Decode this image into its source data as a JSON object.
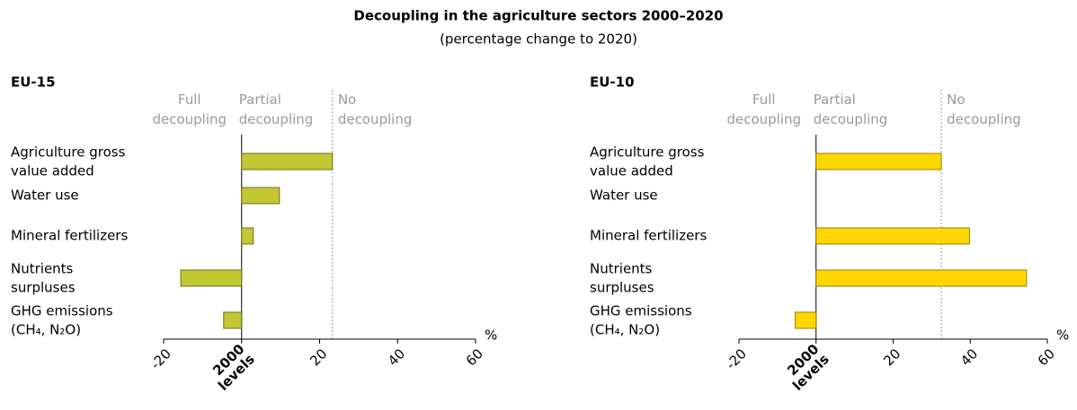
{
  "title": "Decoupling in the agriculture sectors 2000–2020",
  "subtitle": "(percentage change to 2020)",
  "chart_data": [
    {
      "type": "bar",
      "orientation": "horizontal",
      "title": "EU-15",
      "zone_labels": [
        "Full\ndecoupling",
        "Partial\ndecoupling",
        "No\ndecoupling"
      ],
      "categories": [
        "Agriculture gross\nvalue added",
        "Water use",
        "Mineral fertilizers",
        "Nutrients\nsurpluses",
        "GHG emissions\n(CH₄, N₂O)"
      ],
      "values": [
        23.3,
        9.7,
        3,
        -15.6,
        -4.6
      ],
      "color": "#c1c834",
      "border_color": "#6b6f10",
      "xlim": [
        -20,
        60
      ],
      "xticks": [
        -20,
        {
          "value": 0,
          "label": "2000\nlevels"
        },
        20,
        40,
        60
      ],
      "xlabel": "%"
    },
    {
      "type": "bar",
      "orientation": "horizontal",
      "title": "EU-10",
      "zone_labels": [
        "Full\ndecoupling",
        "Partial\ndecoupling",
        "No\ndecoupling"
      ],
      "categories": [
        "Agriculture gross\nvalue added",
        "Water use",
        "Mineral fertilizers",
        "Nutrients\nsurpluses",
        "GHG emissions\n(CH₄, N₂O)"
      ],
      "values": [
        32.5,
        0,
        39.8,
        54.6,
        -5.4
      ],
      "color": "#ffd700",
      "border_color": "#9a7f00",
      "xlim": [
        -20,
        60
      ],
      "xticks": [
        -20,
        {
          "value": 0,
          "label": "2000\nlevels"
        },
        20,
        40,
        60
      ],
      "xlabel": "%"
    }
  ]
}
